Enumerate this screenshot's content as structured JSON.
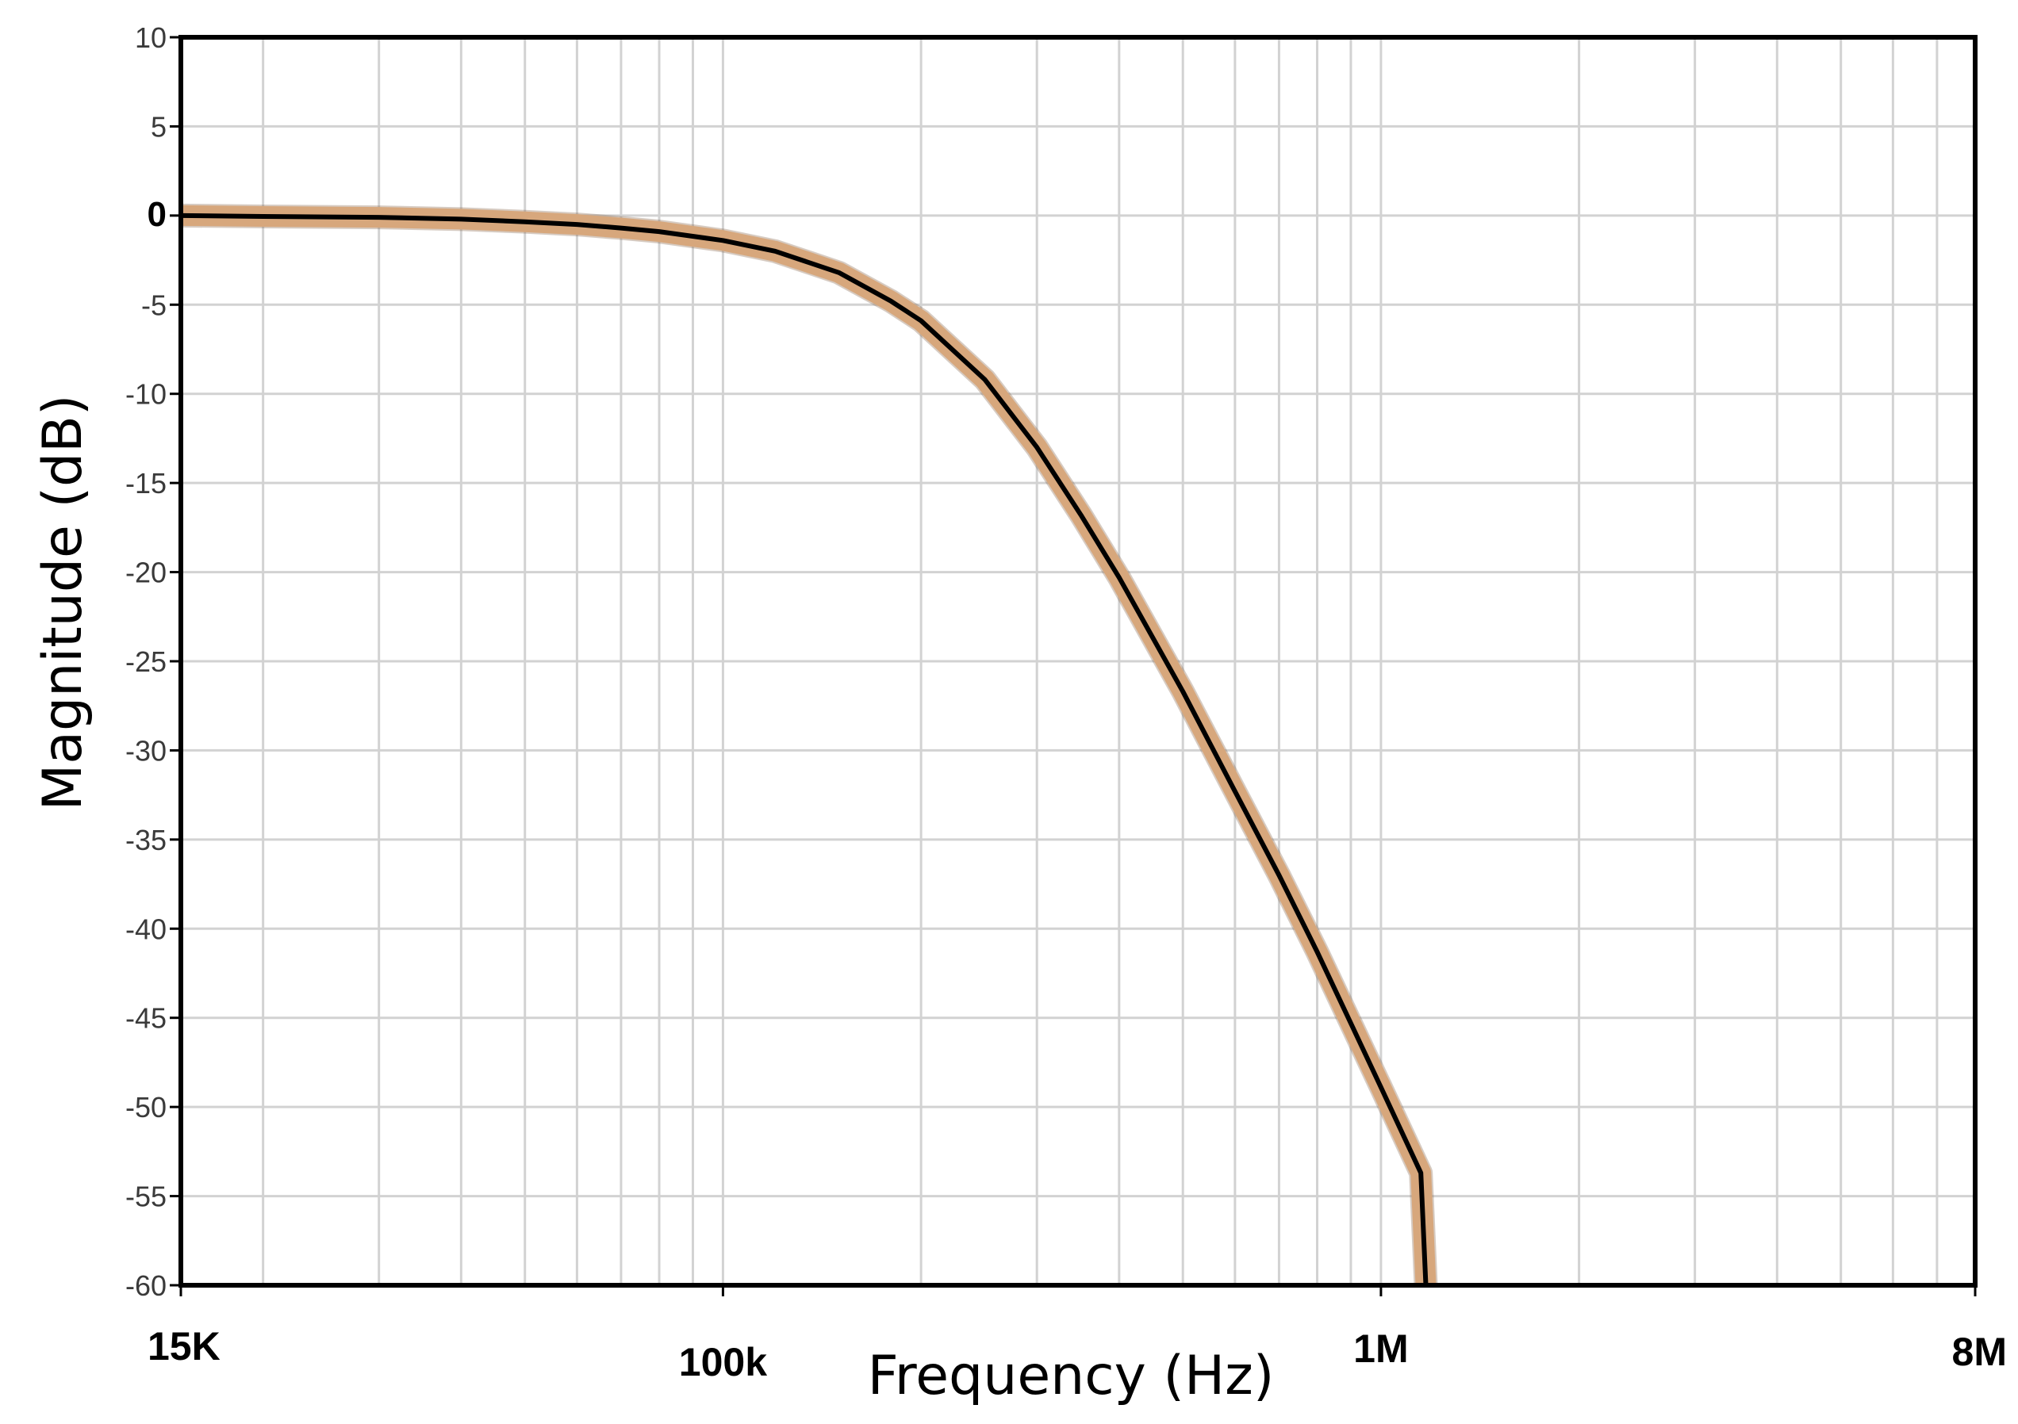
{
  "chart_data": {
    "type": "line",
    "title": "",
    "xlabel": "Frequency (Hz)",
    "ylabel": "Magnitude (dB)",
    "x_scale": "log",
    "xlim": [
      15000,
      8000000
    ],
    "ylim": [
      -60,
      10
    ],
    "grid": true,
    "x_tick_labels": [
      {
        "value": 15000,
        "label": "15K"
      },
      {
        "value": 100000,
        "label": "100k"
      },
      {
        "value": 1000000,
        "label": "1M"
      },
      {
        "value": 8000000,
        "label": "8M"
      }
    ],
    "y_ticks": [
      10,
      5,
      0,
      -5,
      -10,
      -15,
      -20,
      -25,
      -30,
      -35,
      -40,
      -45,
      -50,
      -55,
      -60
    ],
    "y_tick_labels": [
      "10",
      "5",
      "0",
      "-5",
      "-10",
      "-15",
      "-20",
      "-25",
      "-30",
      "-35",
      "-40",
      "-45",
      "-50",
      "-55",
      "-60"
    ],
    "series": [
      {
        "line_color": "#000000",
        "band_color": "#d7a77c",
        "x": [
          15000,
          20000,
          30000,
          40000,
          50000,
          60000,
          70000,
          80000,
          100000,
          120000,
          150000,
          180000,
          200000,
          250000,
          300000,
          350000,
          400000,
          500000,
          600000,
          700000,
          800000,
          900000,
          1000000,
          1150000,
          1170000
        ],
        "y": [
          0,
          -0.05,
          -0.1,
          -0.2,
          -0.35,
          -0.5,
          -0.7,
          -0.9,
          -1.4,
          -2.0,
          -3.2,
          -4.8,
          -5.9,
          -9.2,
          -13.0,
          -16.8,
          -20.3,
          -26.7,
          -32.3,
          -37.0,
          -41.3,
          -45.3,
          -48.9,
          -53.7,
          -60.0
        ]
      }
    ]
  }
}
